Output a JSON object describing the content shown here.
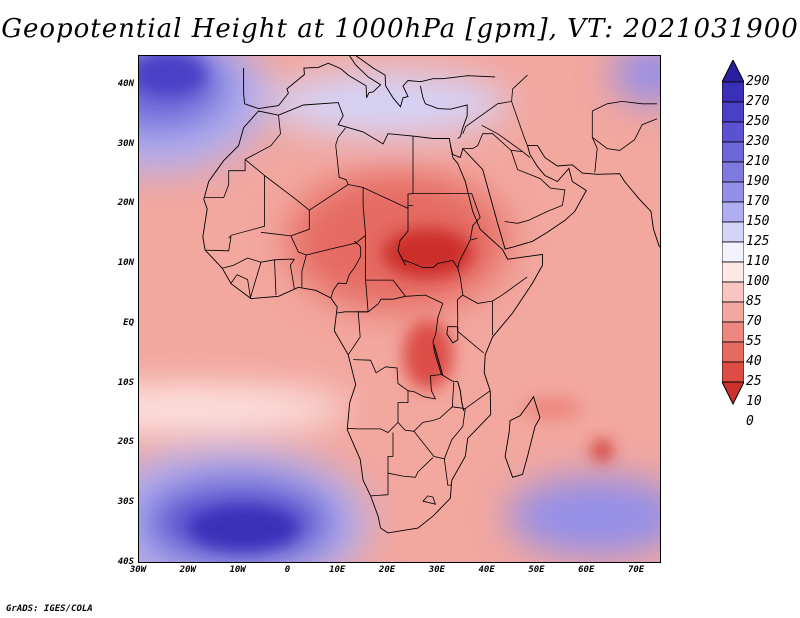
{
  "title": "Geopotential Height at 1000hPa [gpm], VT: 2021031900",
  "credit": "GrADS: IGES/COLA",
  "axes": {
    "lat_labels": [
      "40N",
      "30N",
      "20N",
      "10N",
      "EQ",
      "10S",
      "20S",
      "30S",
      "40S"
    ],
    "lon_labels": [
      "30W",
      "20W",
      "10W",
      "0",
      "10E",
      "20E",
      "30E",
      "40E",
      "50E",
      "60E",
      "70E"
    ],
    "lat_range": [
      -40,
      45
    ],
    "lon_range": [
      -30,
      75
    ]
  },
  "colorbar": {
    "levels": [
      "290",
      "270",
      "250",
      "230",
      "210",
      "190",
      "170",
      "150",
      "125",
      "110",
      "100",
      "85",
      "70",
      "55",
      "40",
      "25",
      "10",
      "0"
    ],
    "colors": [
      "#2b1fa0",
      "#3a2fb8",
      "#4a40c6",
      "#5a52d0",
      "#6c66d8",
      "#7f7ae0",
      "#948fe8",
      "#b0adf0",
      "#d4d3f8",
      "#f3f3fd",
      "#fde8e6",
      "#f7c6c1",
      "#f2a79f",
      "#ec8880",
      "#e56a62",
      "#dd4d46",
      "#cc2f2c"
    ]
  },
  "fields": {
    "ocean_base": "#f2a79f",
    "africa_land": "#f2a79f",
    "sahara_lobe": "#e56a62",
    "sahel_max": "#cc2f2c",
    "south_atlantic_high": "#5a52d0",
    "south_atlantic_core": "#3a2fb8",
    "north_atlantic_high": "#6c66d8",
    "north_atlantic_core": "#4a40c6",
    "indian_high": "#948fe8",
    "med_high": "#d4d3f8"
  }
}
